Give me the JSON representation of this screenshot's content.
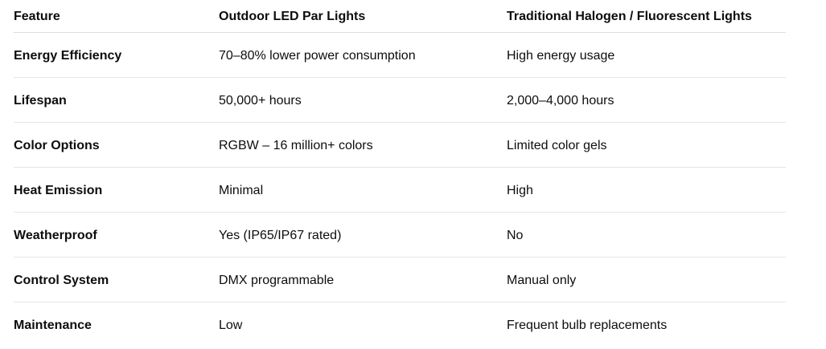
{
  "table": {
    "headers": [
      "Feature",
      "Outdoor LED Par Lights",
      "Traditional Halogen / Fluorescent Lights"
    ],
    "rows": [
      [
        "Energy Efficiency",
        "70–80% lower power consumption",
        "High energy usage"
      ],
      [
        "Lifespan",
        "50,000+ hours",
        "2,000–4,000 hours"
      ],
      [
        "Color Options",
        "RGBW – 16 million+ colors",
        "Limited color gels"
      ],
      [
        "Heat Emission",
        "Minimal",
        "High"
      ],
      [
        "Weatherproof",
        "Yes (IP65/IP67 rated)",
        "No"
      ],
      [
        "Control System",
        "DMX programmable",
        "Manual only"
      ],
      [
        "Maintenance",
        "Low",
        "Frequent bulb replacements"
      ]
    ]
  }
}
